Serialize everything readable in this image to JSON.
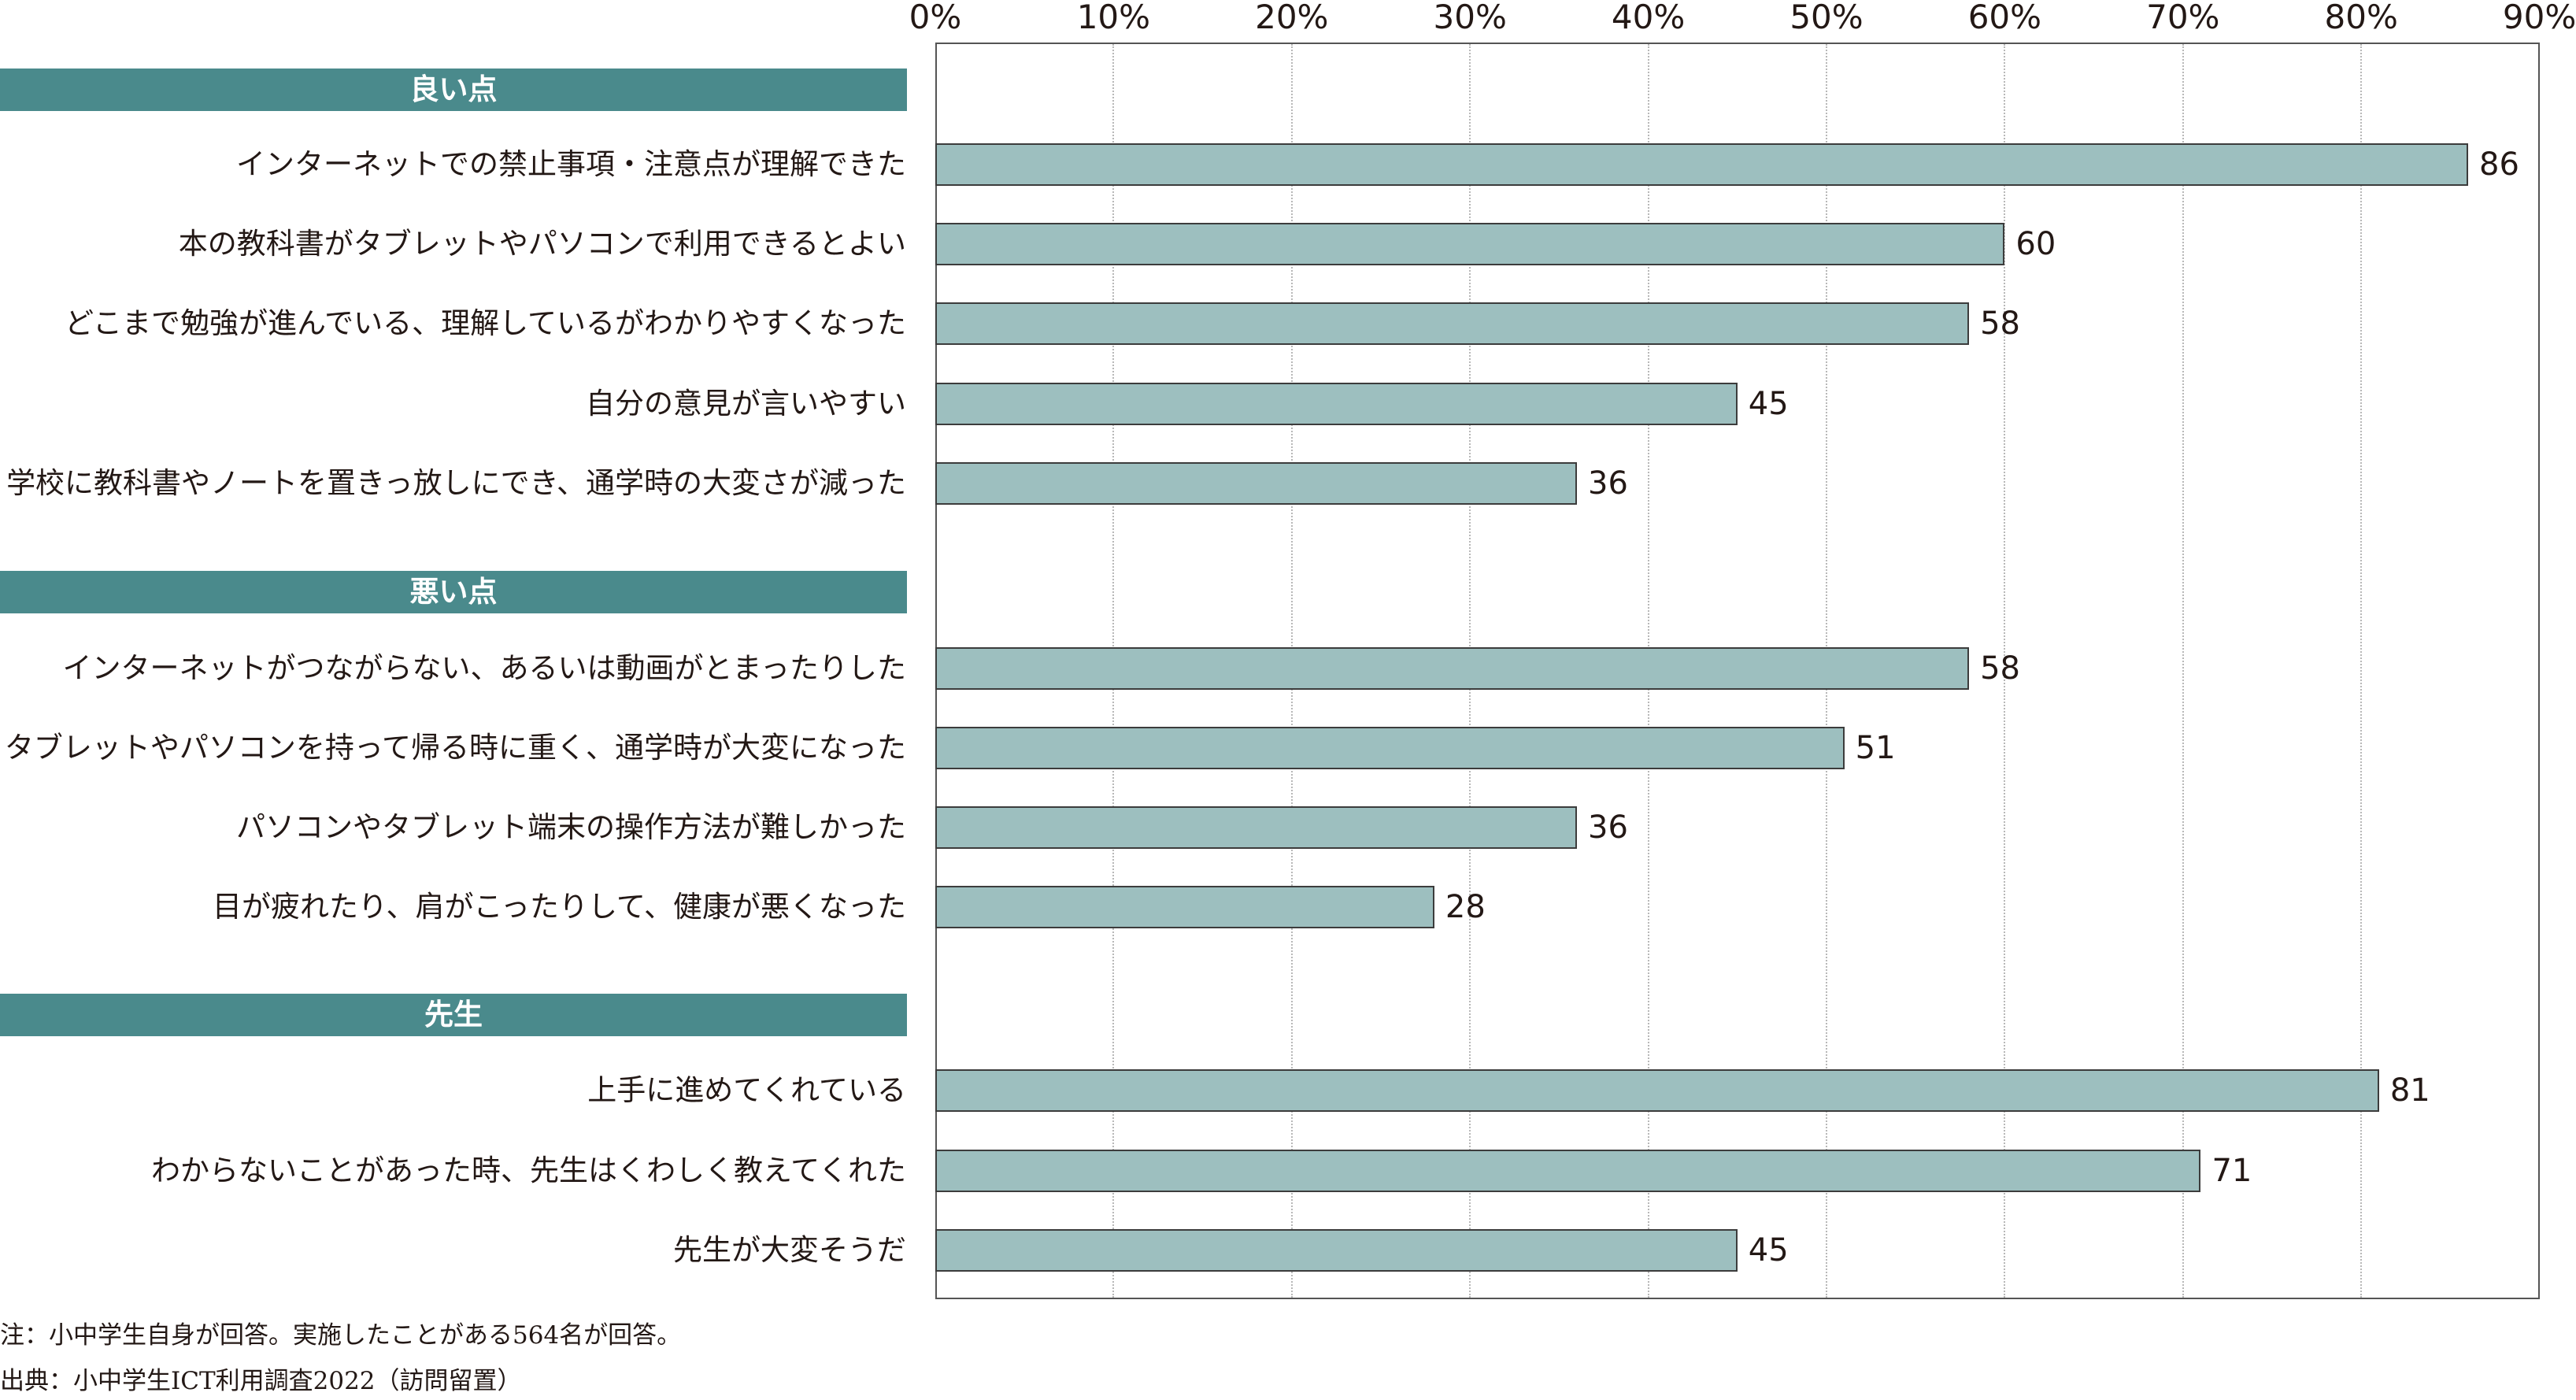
{
  "chart_data": {
    "type": "bar",
    "orientation": "horizontal",
    "xlim": [
      0,
      90
    ],
    "x_ticks": [
      "0%",
      "10%",
      "20%",
      "30%",
      "40%",
      "50%",
      "60%",
      "70%",
      "80%",
      "90%"
    ],
    "grid": "vertical dotted lines",
    "groups": [
      {
        "header": "良い点",
        "items": [
          {
            "label": "インターネットでの禁止事項・注意点が理解できた",
            "value": 86
          },
          {
            "label": "本の教科書がタブレットやパソコンで利用できるとよい",
            "value": 60
          },
          {
            "label": "どこまで勉強が進んでいる、理解しているがわかりやすくなった",
            "value": 58
          },
          {
            "label": "自分の意見が言いやすい",
            "value": 45
          },
          {
            "label": "学校に教科書やノートを置きっ放しにでき、通学時の大変さが減った",
            "value": 36
          }
        ]
      },
      {
        "header": "悪い点",
        "items": [
          {
            "label": "インターネットがつながらない、あるいは動画がとまったりした",
            "value": 58
          },
          {
            "label": "タブレットやパソコンを持って帰る時に重く、通学時が大変になった",
            "value": 51
          },
          {
            "label": "パソコンやタブレット端末の操作方法が難しかった",
            "value": 36
          },
          {
            "label": "目が疲れたり、肩がこったりして、健康が悪くなった",
            "value": 28
          }
        ]
      },
      {
        "header": "先生",
        "items": [
          {
            "label": "上手に進めてくれている",
            "value": 81
          },
          {
            "label": "わからないことがあった時、先生はくわしく教えてくれた",
            "value": 71
          },
          {
            "label": "先生が大変そうだ",
            "value": 45
          }
        ]
      }
    ],
    "colors": {
      "bar": "#9dbfbf",
      "bar_border": "#3c3c3c",
      "header_bg": "#4a8a8c",
      "header_text": "#ffffff"
    }
  },
  "notes": [
    "注：小中学生自身が回答。実施したことがある564名が回答。",
    "出典：小中学生ICT利用調査2022（訪問留置）"
  ]
}
